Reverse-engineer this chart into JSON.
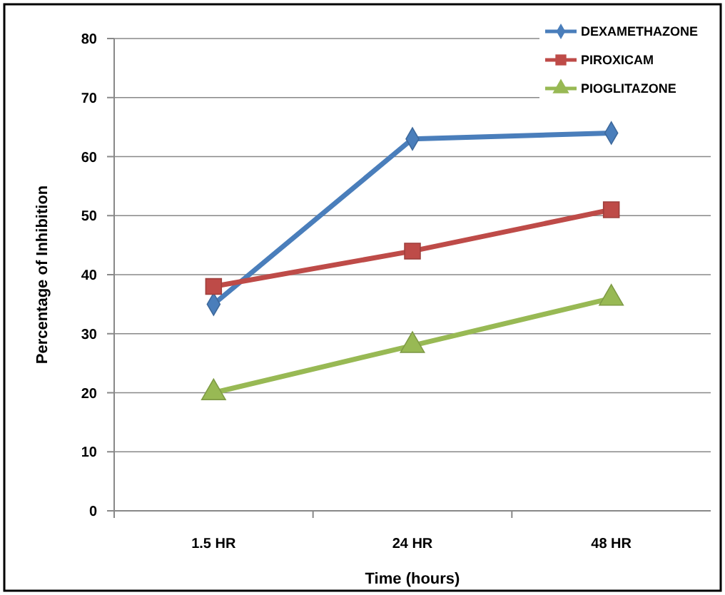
{
  "chart_data": {
    "type": "line",
    "xlabel": "Time (hours)",
    "ylabel": "Percentage of Inhibition",
    "categories": [
      "1.5 HR",
      "24 HR",
      "48 HR"
    ],
    "series": [
      {
        "name": "DEXAMETHAZONE",
        "color": "#4a7ebb",
        "values": [
          35,
          63,
          64
        ],
        "marker": "diamond"
      },
      {
        "name": "PIROXICAM",
        "color": "#be4b48",
        "values": [
          38,
          44,
          51
        ],
        "marker": "square"
      },
      {
        "name": "PIOGLITAZONE",
        "color": "#98b954",
        "values": [
          20,
          28,
          36
        ],
        "marker": "triangle"
      }
    ],
    "ylim": [
      0,
      80
    ],
    "yticks": [
      0,
      10,
      20,
      30,
      40,
      50,
      60,
      70,
      80
    ],
    "grid": "y",
    "legend": "top right",
    "line_style": "solid"
  }
}
